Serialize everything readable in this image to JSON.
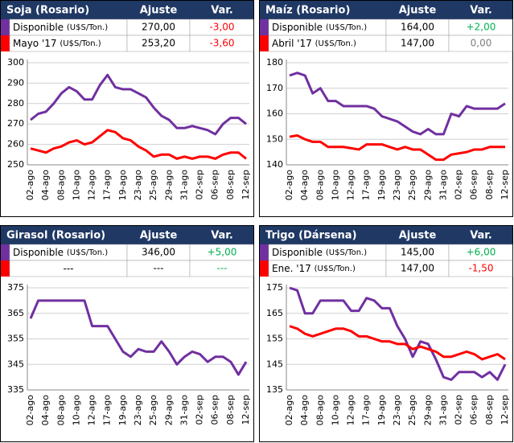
{
  "chart_data": [
    {
      "type": "line",
      "title": "Soja (Rosario)",
      "columns": [
        "Ajuste",
        "Var."
      ],
      "rows": [
        {
          "name": "Disponible",
          "unit": "(U$S/Ton.)",
          "ajuste": "270,00",
          "var": "-3,00",
          "color": "#7030a0",
          "var_color": "#ff0000"
        },
        {
          "name": "Mayo '17",
          "unit": "(U$S/Ton.)",
          "ajuste": "253,20",
          "var": "-3,60",
          "color": "#ff0000",
          "var_color": "#ff0000"
        }
      ],
      "categories": [
        "02-ago",
        null,
        "04-ago",
        null,
        "08-ago",
        null,
        "10-ago",
        null,
        "12-ago",
        null,
        "17-ago",
        null,
        "19-ago",
        null,
        "23-ago",
        null,
        "25-ago",
        null,
        "29-ago",
        null,
        "31-ago",
        null,
        "02-sep",
        null,
        "06-sep",
        null,
        "08-sep",
        null,
        "12-sep"
      ],
      "series": [
        {
          "color": "#7030a0",
          "values": [
            272,
            275,
            276,
            280,
            285,
            288,
            286,
            282,
            282,
            289,
            294,
            288,
            287,
            287,
            285,
            283,
            278,
            274,
            272,
            268,
            268,
            269,
            268,
            267,
            265,
            270,
            273,
            273,
            270
          ]
        },
        {
          "color": "#ff0000",
          "values": [
            258,
            257,
            256,
            258,
            259,
            261,
            262,
            260,
            261,
            264,
            267,
            266,
            263,
            262,
            259,
            257,
            254,
            255,
            255,
            253,
            254,
            253,
            254,
            254,
            253,
            255,
            256,
            256,
            253
          ]
        }
      ],
      "ylim": [
        250,
        300
      ],
      "yticks": [
        250,
        260,
        270,
        280,
        290,
        300
      ],
      "grid": true
    },
    {
      "type": "line",
      "title": "Maíz (Rosario)",
      "columns": [
        "Ajuste",
        "Var."
      ],
      "rows": [
        {
          "name": "Disponible",
          "unit": "(U$S/Ton.)",
          "ajuste": "164,00",
          "var": "+2,00",
          "color": "#7030a0",
          "var_color": "#00b050"
        },
        {
          "name": "Abril '17",
          "unit": "(U$S/Ton.)",
          "ajuste": "147,00",
          "var": "0,00",
          "color": "#ff0000",
          "var_color": "#808080"
        }
      ],
      "categories": [
        "02-ago",
        null,
        "04-ago",
        null,
        "08-ago",
        null,
        "10-ago",
        null,
        "12-ago",
        null,
        "17-ago",
        null,
        "19-ago",
        null,
        "23-ago",
        null,
        "25-ago",
        null,
        "29-ago",
        null,
        "31-ago",
        null,
        "02-sep",
        null,
        "06-sep",
        null,
        "08-sep",
        null,
        "12-sep"
      ],
      "series": [
        {
          "color": "#7030a0",
          "values": [
            175,
            176,
            175,
            168,
            170,
            165,
            165,
            163,
            163,
            163,
            163,
            162,
            159,
            158,
            157,
            155,
            153,
            152,
            154,
            152,
            152,
            160,
            159,
            163,
            162,
            162,
            162,
            162,
            164
          ]
        },
        {
          "color": "#ff0000",
          "values": [
            151,
            151.5,
            150,
            149,
            149,
            147,
            147,
            147,
            146.5,
            146,
            148,
            148,
            148,
            147,
            146,
            147,
            146,
            146,
            144,
            142,
            142,
            144,
            144.5,
            145,
            146,
            146,
            147,
            147,
            147
          ]
        }
      ],
      "ylim": [
        140,
        180
      ],
      "yticks": [
        140,
        150,
        160,
        170,
        180
      ],
      "grid": true
    },
    {
      "type": "line",
      "title": "Girasol (Rosario)",
      "columns": [
        "Ajuste",
        "Var."
      ],
      "rows": [
        {
          "name": "Disponible",
          "unit": "(U$S/Ton.)",
          "ajuste": "346,00",
          "var": "+5,00",
          "color": "#7030a0",
          "var_color": "#00b050"
        },
        {
          "name": "---",
          "ajuste": "---",
          "var": "---",
          "color": "#ff0000",
          "var_color": "#00b050"
        }
      ],
      "categories": [
        "02-ago",
        null,
        "04-ago",
        null,
        "08-ago",
        null,
        "10-ago",
        null,
        "12-ago",
        null,
        "17-ago",
        null,
        "19-ago",
        null,
        "23-ago",
        null,
        "25-ago",
        null,
        "29-ago",
        null,
        "31-ago",
        null,
        "02-sep",
        null,
        "06-sep",
        null,
        "08-sep",
        null,
        "12-sep"
      ],
      "series": [
        {
          "color": "#7030a0",
          "values": [
            363,
            370,
            370,
            370,
            370,
            370,
            370,
            370,
            360,
            360,
            360,
            355,
            350,
            348,
            351,
            350,
            350,
            354,
            350,
            345,
            348,
            350,
            349,
            346,
            348,
            348,
            346,
            341,
            346
          ]
        }
      ],
      "ylim": [
        335,
        375
      ],
      "yticks": [
        335,
        345,
        355,
        365,
        375
      ],
      "grid": true
    },
    {
      "type": "line",
      "title": "Trigo (Dársena)",
      "columns": [
        "Ajuste",
        "Var."
      ],
      "rows": [
        {
          "name": "Disponible",
          "unit": "(U$S/Ton.)",
          "ajuste": "145,00",
          "var": "+6,00",
          "color": "#7030a0",
          "var_color": "#00b050"
        },
        {
          "name": "Ene. '17",
          "unit": "(U$S/Ton.)",
          "ajuste": "147,00",
          "var": "-1,50",
          "color": "#ff0000",
          "var_color": "#ff0000"
        }
      ],
      "categories": [
        "02-ago",
        null,
        "04-ago",
        null,
        "08-ago",
        null,
        "10-ago",
        null,
        "12-ago",
        null,
        "17-ago",
        null,
        "19-ago",
        null,
        "23-ago",
        null,
        "25-ago",
        null,
        "29-ago",
        null,
        "31-ago",
        null,
        "02-sep",
        null,
        "06-sep",
        null,
        "08-sep",
        null,
        "12-sep"
      ],
      "series": [
        {
          "color": "#7030a0",
          "values": [
            175,
            174,
            165,
            165,
            170,
            170,
            170,
            170,
            166,
            166,
            171,
            170,
            167,
            167,
            160,
            155,
            148,
            154,
            153,
            147,
            140,
            139,
            142,
            142,
            142,
            140,
            142,
            139,
            145
          ]
        },
        {
          "color": "#ff0000",
          "values": [
            160,
            159,
            157,
            156,
            157,
            158,
            159,
            159,
            158,
            156,
            156,
            155,
            154,
            154,
            153,
            153,
            151,
            152,
            151,
            150,
            148,
            148,
            149,
            150,
            149,
            147,
            148,
            149,
            147
          ]
        }
      ],
      "ylim": [
        135,
        175
      ],
      "yticks": [
        135,
        145,
        155,
        165,
        175
      ],
      "grid": true
    }
  ]
}
